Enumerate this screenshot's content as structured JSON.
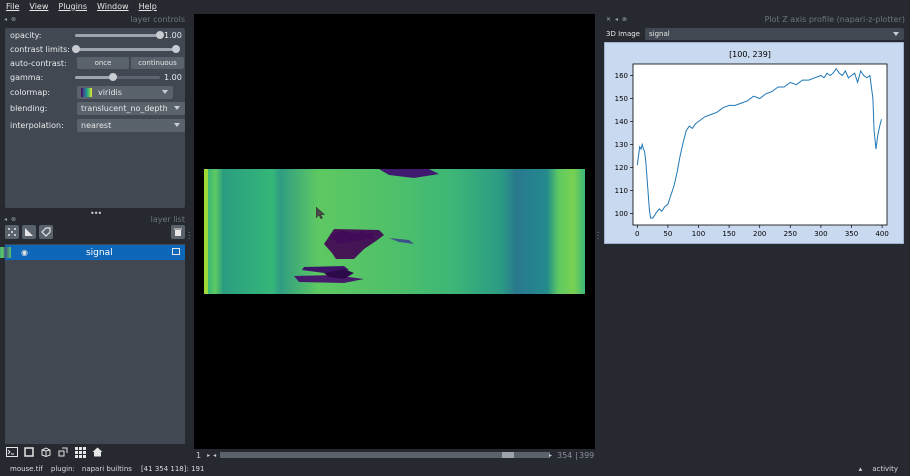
{
  "menu": [
    "File",
    "View",
    "Plugins",
    "Window",
    "Help"
  ],
  "layer_controls": {
    "title": "layer controls",
    "opacity_label": "opacity:",
    "opacity_value": "1.00",
    "opacity_level": 1.0,
    "contrast_label": "contrast limits:",
    "contrast_range": [
      0.0,
      1.0
    ],
    "auto_contrast_label": "auto-contrast:",
    "once_label": "once",
    "continuous_label": "continuous",
    "gamma_label": "gamma:",
    "gamma_value": "1.00",
    "gamma_level": 0.45,
    "colormap_label": "colormap:",
    "colormap_value": "viridis",
    "blending_label": "blending:",
    "blending_value": "translucent_no_depth",
    "interpolation_label": "interpolation:",
    "interpolation_value": "nearest"
  },
  "layer_list": {
    "title": "layer list",
    "layers": [
      {
        "name": "signal",
        "visible": true,
        "selected": true
      }
    ]
  },
  "dims": {
    "axis_label": "1",
    "current": "354",
    "total": "399",
    "position_fraction": 0.887
  },
  "plot_dock": {
    "title": "Plot Z axis profile (napari-z-plotter)",
    "image_label": "3D Image",
    "image_select": "signal",
    "chart_title": "[100, 239]"
  },
  "chart_data": {
    "type": "line",
    "title": "[100, 239]",
    "xlabel": "",
    "ylabel": "",
    "xlim": [
      -7,
      408
    ],
    "ylim": [
      95,
      165
    ],
    "xticks": [
      0,
      50,
      100,
      150,
      200,
      250,
      300,
      350,
      400
    ],
    "yticks": [
      100,
      110,
      120,
      130,
      140,
      150,
      160
    ],
    "grid": false,
    "series": [
      {
        "x": [
          0,
          2,
          4,
          6,
          8,
          10,
          12,
          14,
          16,
          18,
          20,
          22,
          25,
          28,
          30,
          33,
          36,
          40,
          45,
          50,
          55,
          60,
          65,
          70,
          75,
          80,
          85,
          90,
          95,
          100,
          110,
          120,
          130,
          140,
          150,
          160,
          170,
          180,
          190,
          200,
          210,
          220,
          230,
          240,
          250,
          260,
          270,
          280,
          290,
          300,
          305,
          310,
          315,
          320,
          325,
          330,
          335,
          340,
          345,
          350,
          355,
          360,
          365,
          370,
          375,
          380,
          385,
          387,
          390,
          393,
          396,
          399
        ],
        "values": [
          121,
          125,
          129,
          128,
          130,
          128,
          127,
          122,
          115,
          108,
          101,
          98,
          98,
          99,
          100,
          101,
          102,
          101,
          103,
          104,
          108,
          112,
          118,
          125,
          131,
          136,
          138,
          137,
          139,
          140,
          142,
          143,
          144,
          146,
          147,
          147,
          148,
          149,
          151,
          150,
          152,
          153,
          155,
          155,
          157,
          156,
          158,
          158,
          159,
          160,
          159,
          161,
          160,
          161,
          163,
          161,
          160,
          162,
          159,
          160,
          161,
          157,
          162,
          160,
          159,
          160,
          150,
          136,
          128,
          134,
          138,
          141
        ]
      }
    ]
  },
  "status": {
    "file": "mouse.tif",
    "plugin_label": "plugin:",
    "plugin": "napari builtins",
    "coords": "[41 354 118]: 191",
    "activity": "activity"
  },
  "colors": {
    "background": "#262930",
    "panel": "#414851",
    "selected": "#0e67b9",
    "line": "#1f77b4",
    "plot_bg": "#c9d9ef"
  }
}
